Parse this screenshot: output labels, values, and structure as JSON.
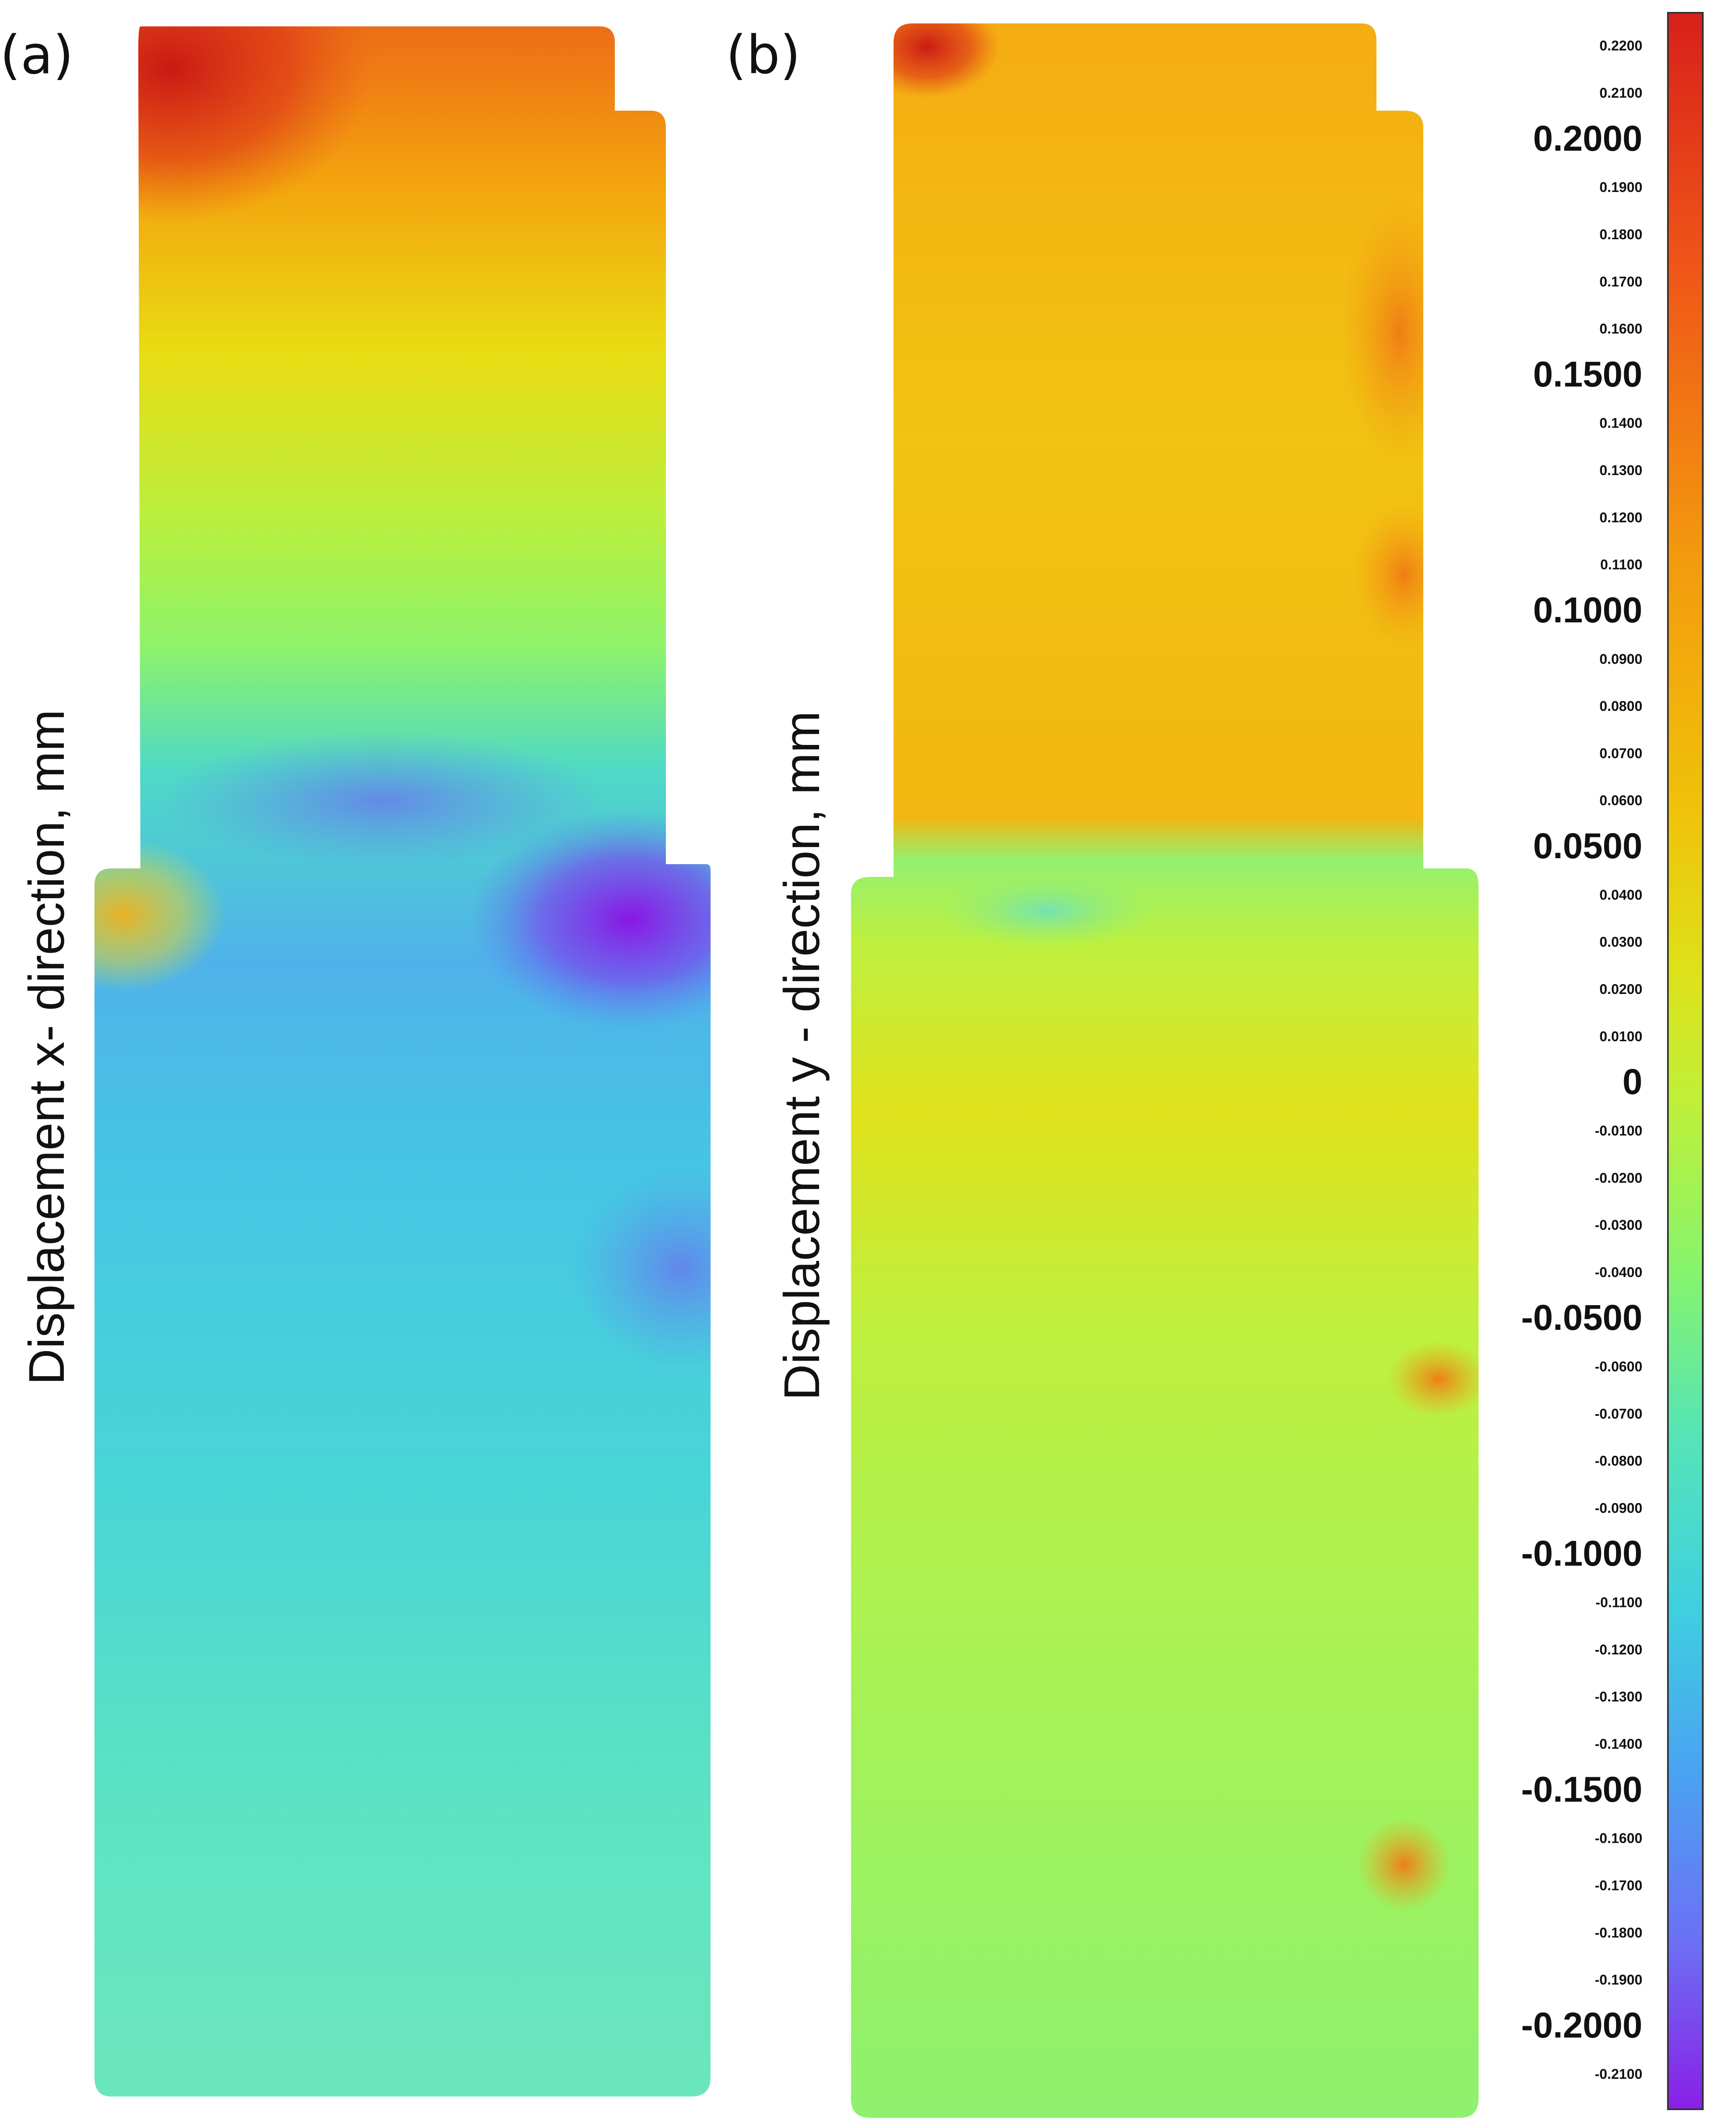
{
  "panels": [
    {
      "label": "(a)",
      "axis_title": "Displacement x- direction, mm"
    },
    {
      "label": "(b)",
      "axis_title": "Displacement y - direction, mm"
    }
  ],
  "colorbar": {
    "min": -0.215,
    "max": 0.225,
    "ticks": [
      {
        "value": 0.22,
        "label": "0.2200",
        "major": false
      },
      {
        "value": 0.21,
        "label": "0.2100",
        "major": false
      },
      {
        "value": 0.2,
        "label": "0.2000",
        "major": true
      },
      {
        "value": 0.19,
        "label": "0.1900",
        "major": false
      },
      {
        "value": 0.18,
        "label": "0.1800",
        "major": false
      },
      {
        "value": 0.17,
        "label": "0.1700",
        "major": false
      },
      {
        "value": 0.16,
        "label": "0.1600",
        "major": false
      },
      {
        "value": 0.15,
        "label": "0.1500",
        "major": true
      },
      {
        "value": 0.14,
        "label": "0.1400",
        "major": false
      },
      {
        "value": 0.13,
        "label": "0.1300",
        "major": false
      },
      {
        "value": 0.12,
        "label": "0.1200",
        "major": false
      },
      {
        "value": 0.11,
        "label": "0.1100",
        "major": false
      },
      {
        "value": 0.1,
        "label": "0.1000",
        "major": true
      },
      {
        "value": 0.09,
        "label": "0.0900",
        "major": false
      },
      {
        "value": 0.08,
        "label": "0.0800",
        "major": false
      },
      {
        "value": 0.07,
        "label": "0.0700",
        "major": false
      },
      {
        "value": 0.06,
        "label": "0.0600",
        "major": false
      },
      {
        "value": 0.05,
        "label": "0.0500",
        "major": true
      },
      {
        "value": 0.04,
        "label": "0.0400",
        "major": false
      },
      {
        "value": 0.03,
        "label": "0.0300",
        "major": false
      },
      {
        "value": 0.02,
        "label": "0.0200",
        "major": false
      },
      {
        "value": 0.01,
        "label": "0.0100",
        "major": false
      },
      {
        "value": 0,
        "label": "0",
        "major": true
      },
      {
        "value": -0.01,
        "label": "-0.0100",
        "major": false
      },
      {
        "value": -0.02,
        "label": "-0.0200",
        "major": false
      },
      {
        "value": -0.03,
        "label": "-0.0300",
        "major": false
      },
      {
        "value": -0.04,
        "label": "-0.0400",
        "major": false
      },
      {
        "value": -0.05,
        "label": "-0.0500",
        "major": true
      },
      {
        "value": -0.06,
        "label": "-0.0600",
        "major": false
      },
      {
        "value": -0.07,
        "label": "-0.0700",
        "major": false
      },
      {
        "value": -0.08,
        "label": "-0.0800",
        "major": false
      },
      {
        "value": -0.09,
        "label": "-0.0900",
        "major": false
      },
      {
        "value": -0.1,
        "label": "-0.1000",
        "major": true
      },
      {
        "value": -0.11,
        "label": "-0.1100",
        "major": false
      },
      {
        "value": -0.12,
        "label": "-0.1200",
        "major": false
      },
      {
        "value": -0.13,
        "label": "-0.1300",
        "major": false
      },
      {
        "value": -0.14,
        "label": "-0.1400",
        "major": false
      },
      {
        "value": -0.15,
        "label": "-0.1500",
        "major": true
      },
      {
        "value": -0.16,
        "label": "-0.1600",
        "major": false
      },
      {
        "value": -0.17,
        "label": "-0.1700",
        "major": false
      },
      {
        "value": -0.18,
        "label": "-0.1800",
        "major": false
      },
      {
        "value": -0.19,
        "label": "-0.1900",
        "major": false
      },
      {
        "value": -0.2,
        "label": "-0.2000",
        "major": true
      },
      {
        "value": -0.21,
        "label": "-0.2100",
        "major": false
      }
    ]
  }
}
